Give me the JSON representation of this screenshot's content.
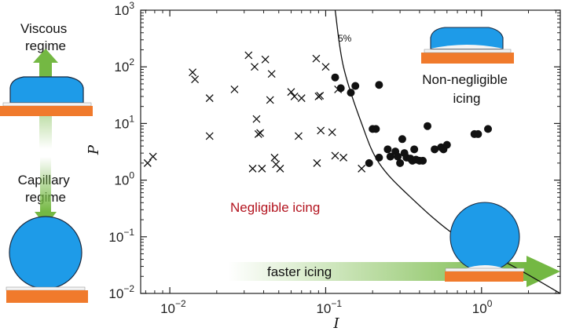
{
  "chart_data": {
    "type": "scatter",
    "title": "",
    "xlabel": "I",
    "ylabel": "P",
    "xscale": "log",
    "yscale": "log",
    "xlim": [
      0.0065,
      3.2
    ],
    "ylim": [
      0.01,
      1000
    ],
    "x_ticks": [
      {
        "value": 0.01,
        "base": "10",
        "exp": "−2"
      },
      {
        "value": 0.1,
        "base": "10",
        "exp": "−1"
      },
      {
        "value": 1,
        "base": "10",
        "exp": "0"
      }
    ],
    "y_ticks": [
      {
        "value": 0.01,
        "base": "10",
        "exp": "−2"
      },
      {
        "value": 0.1,
        "base": "10",
        "exp": "−1"
      },
      {
        "value": 1,
        "base": "10",
        "exp": "0"
      },
      {
        "value": 10,
        "base": "10",
        "exp": "1"
      },
      {
        "value": 100,
        "base": "10",
        "exp": "2"
      },
      {
        "value": 1000,
        "base": "10",
        "exp": "3"
      }
    ],
    "grid": false,
    "boundary_curve": {
      "label": "5%",
      "points": [
        [
          0.115,
          1000
        ],
        [
          0.13,
          100
        ],
        [
          0.17,
          10
        ],
        [
          0.22,
          2
        ],
        [
          0.35,
          0.5
        ],
        [
          0.7,
          0.1
        ],
        [
          1.6,
          0.03
        ],
        [
          3.2,
          0.01
        ]
      ]
    },
    "series": [
      {
        "marker": "x",
        "values": [
          [
            0.0072,
            2.0
          ],
          [
            0.0078,
            2.6
          ],
          [
            0.014,
            80
          ],
          [
            0.0145,
            60
          ],
          [
            0.018,
            28
          ],
          [
            0.018,
            6
          ],
          [
            0.026,
            40
          ],
          [
            0.032,
            160
          ],
          [
            0.034,
            1.6
          ],
          [
            0.035,
            100
          ],
          [
            0.036,
            12
          ],
          [
            0.037,
            6.5
          ],
          [
            0.038,
            6.8
          ],
          [
            0.039,
            1.6
          ],
          [
            0.041,
            135
          ],
          [
            0.044,
            26
          ],
          [
            0.045,
            75
          ],
          [
            0.047,
            2.5
          ],
          [
            0.048,
            1.9
          ],
          [
            0.051,
            1.6
          ],
          [
            0.06,
            36
          ],
          [
            0.063,
            30
          ],
          [
            0.067,
            6
          ],
          [
            0.07,
            28
          ],
          [
            0.087,
            140
          ],
          [
            0.088,
            2.0
          ],
          [
            0.09,
            30
          ],
          [
            0.092,
            31
          ],
          [
            0.093,
            7.5
          ],
          [
            0.1,
            100
          ],
          [
            0.11,
            7
          ],
          [
            0.115,
            2.7
          ],
          [
            0.12,
            40
          ],
          [
            0.13,
            2.5
          ],
          [
            0.17,
            1.6
          ]
        ]
      },
      {
        "marker": "dot",
        "values": [
          [
            0.115,
            65
          ],
          [
            0.125,
            42
          ],
          [
            0.145,
            35
          ],
          [
            0.155,
            46
          ],
          [
            0.2,
            8
          ],
          [
            0.21,
            8
          ],
          [
            0.22,
            48
          ],
          [
            0.19,
            2.0
          ],
          [
            0.22,
            2.5
          ],
          [
            0.25,
            3.5
          ],
          [
            0.26,
            2.6
          ],
          [
            0.28,
            3.2
          ],
          [
            0.29,
            2.6
          ],
          [
            0.3,
            2.0
          ],
          [
            0.31,
            5.3
          ],
          [
            0.32,
            3.0
          ],
          [
            0.33,
            2.5
          ],
          [
            0.35,
            2.4
          ],
          [
            0.36,
            2.2
          ],
          [
            0.37,
            3.5
          ],
          [
            0.38,
            2.3
          ],
          [
            0.4,
            2.2
          ],
          [
            0.42,
            2.2
          ],
          [
            0.45,
            9
          ],
          [
            0.5,
            3.5
          ],
          [
            0.55,
            3.8
          ],
          [
            0.57,
            3.5
          ],
          [
            0.6,
            4.2
          ],
          [
            0.9,
            6.5
          ],
          [
            0.95,
            6.5
          ],
          [
            1.1,
            8
          ]
        ]
      }
    ],
    "annotations": {
      "viscous": "Viscous\nregime",
      "capillary": "Capillary\nregime",
      "negligible": "Negligible icing",
      "non_negligible": "Non-negligible\nicing",
      "faster": "faster icing"
    },
    "colors": {
      "droplet": "#1e9be8",
      "substrate": "#f07a2c",
      "arrow": "#74b843",
      "annotation_red": "#b3141f"
    }
  }
}
